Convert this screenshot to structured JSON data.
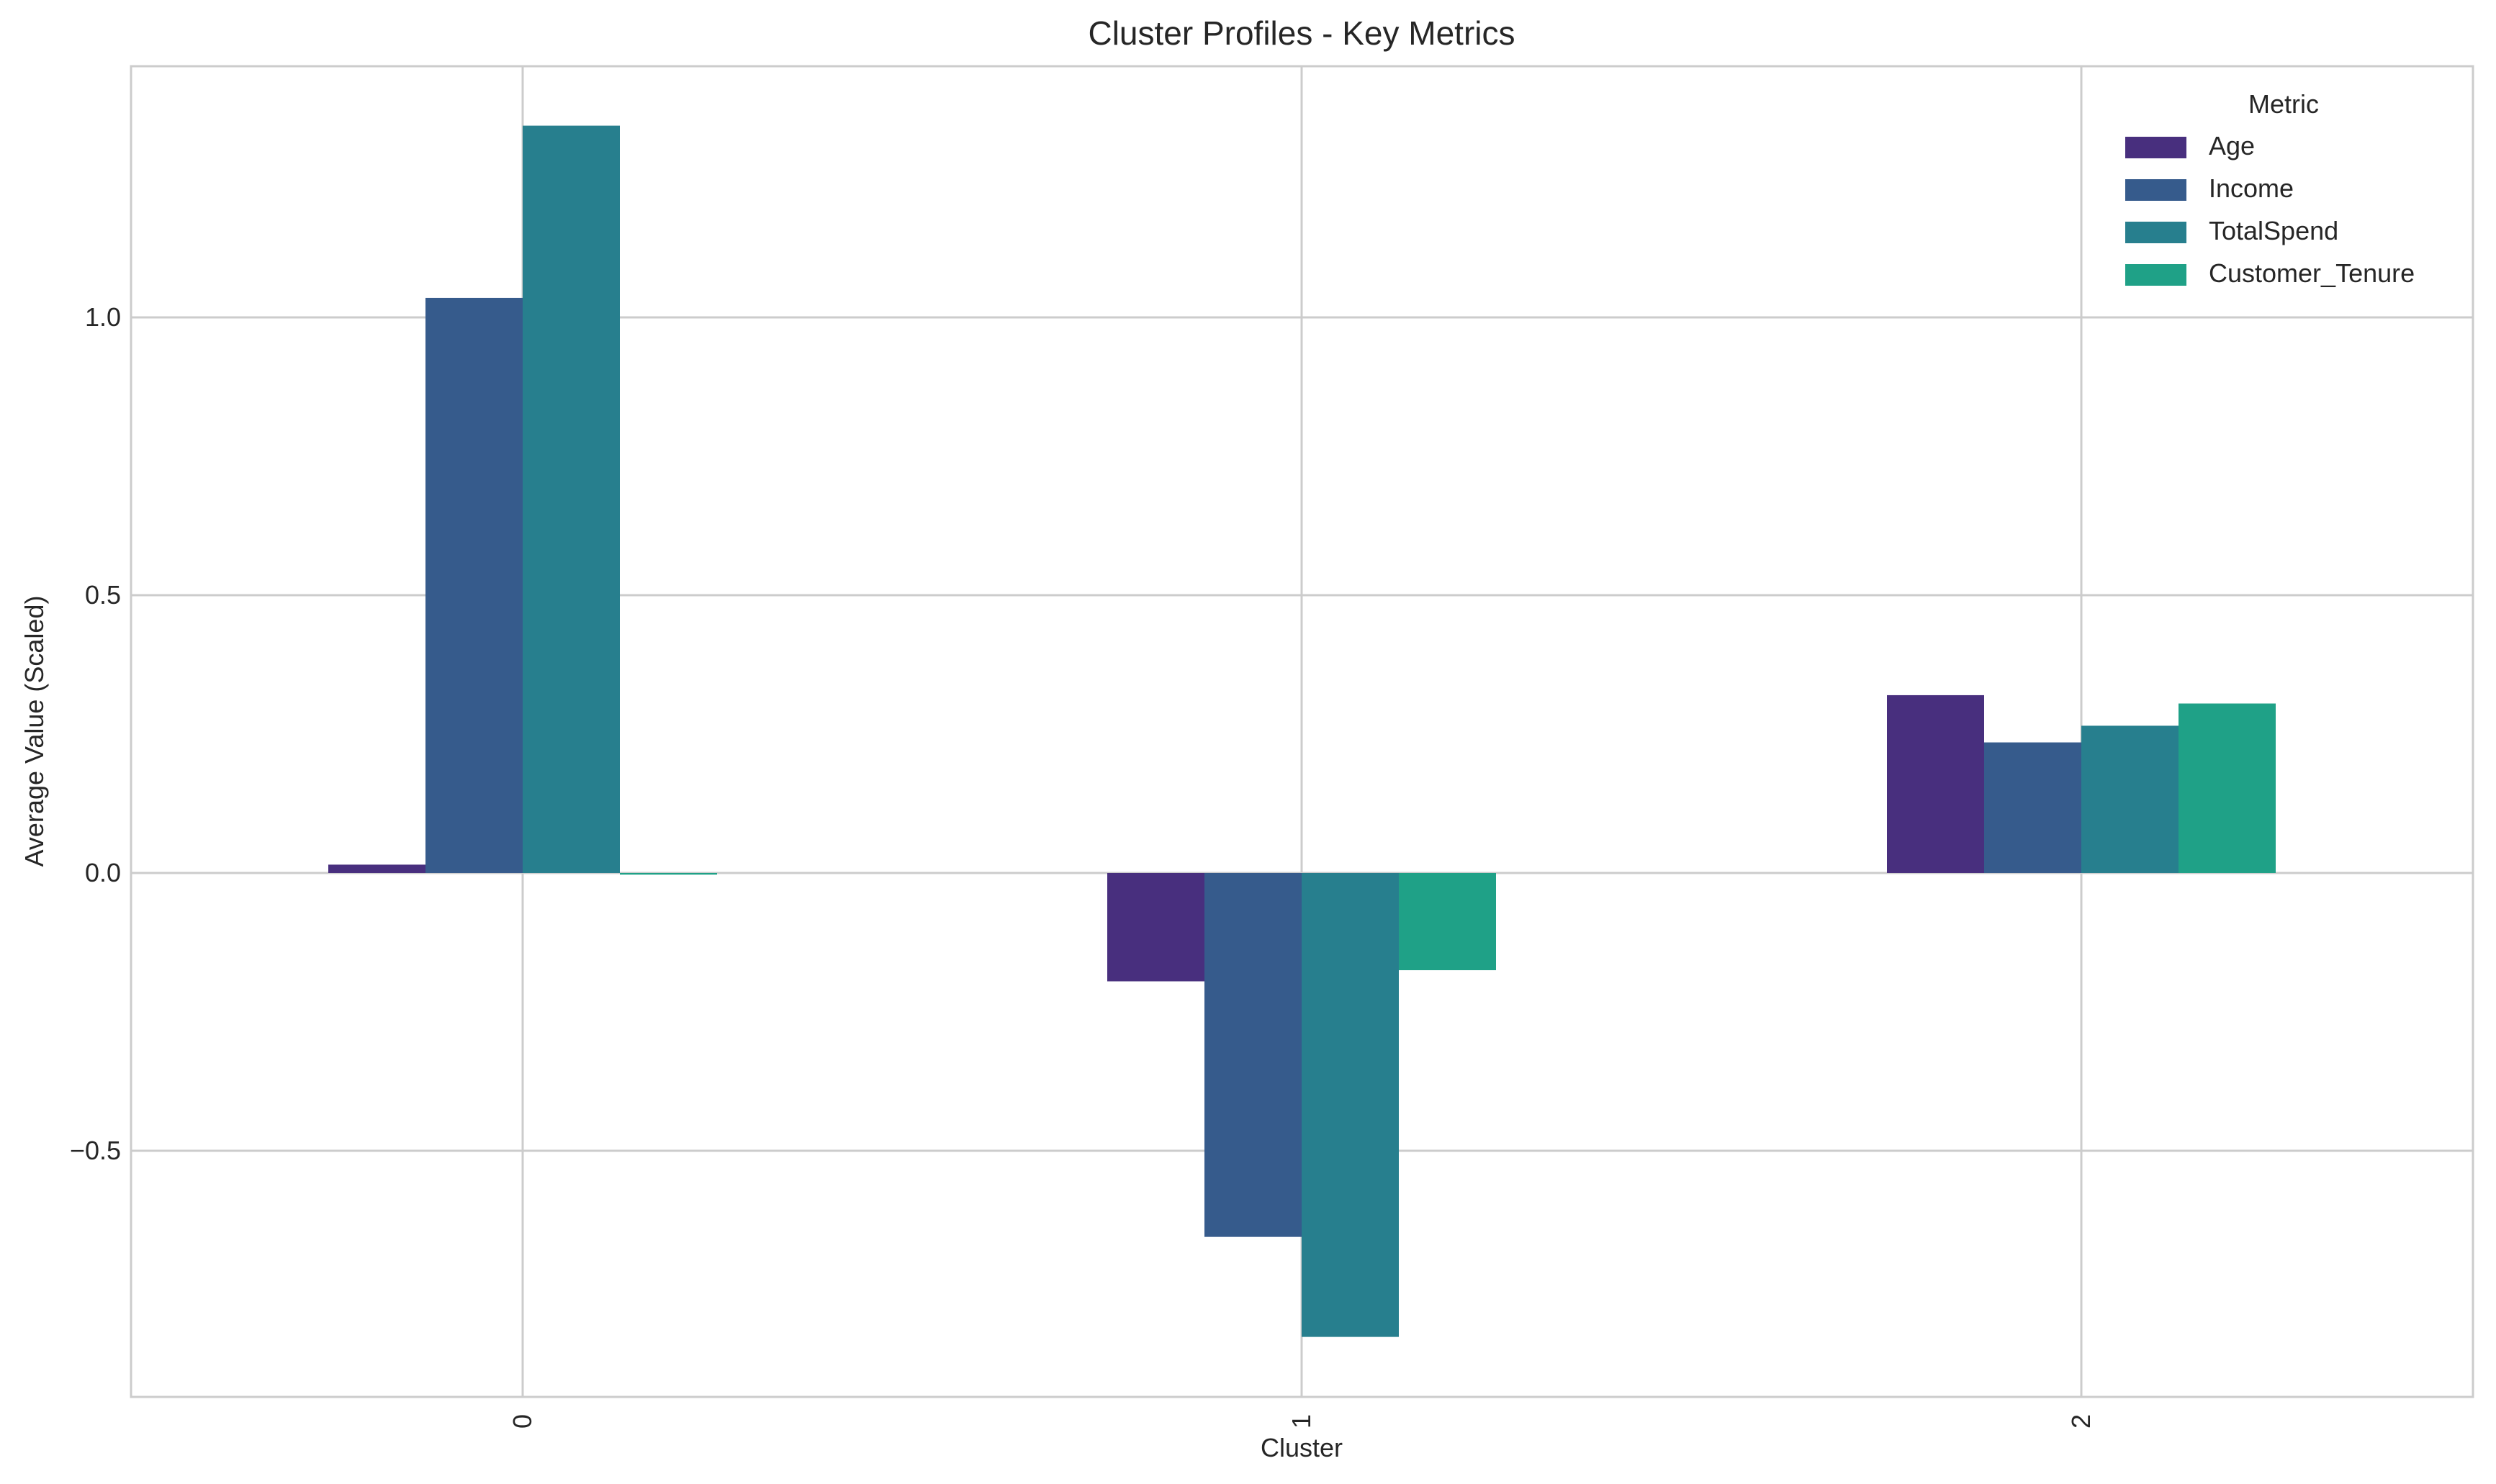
{
  "chart_data": {
    "type": "bar",
    "title": "Cluster Profiles - Key Metrics",
    "xlabel": "Cluster",
    "ylabel": "Average Value (Scaled)",
    "categories": [
      "0",
      "1",
      "2"
    ],
    "series": [
      {
        "name": "Age",
        "color": "#482f7e",
        "values": [
          0.015,
          -0.195,
          0.32
        ]
      },
      {
        "name": "Income",
        "color": "#365b8c",
        "values": [
          1.035,
          -0.655,
          0.235
        ]
      },
      {
        "name": "TotalSpend",
        "color": "#277f8e",
        "values": [
          1.345,
          -0.835,
          0.265
        ]
      },
      {
        "name": "Customer_Tenure",
        "color": "#1fa187",
        "values": [
          -0.003,
          -0.175,
          0.305
        ]
      }
    ],
    "yticks": [
      -0.5,
      0.0,
      0.5,
      1.0
    ],
    "ytick_labels": [
      "−0.5",
      "0.0",
      "0.5",
      "1.0"
    ],
    "ylim": [
      -0.943,
      1.452
    ],
    "grid": true,
    "legend": {
      "title": "Metric",
      "placement": "top-right"
    }
  }
}
